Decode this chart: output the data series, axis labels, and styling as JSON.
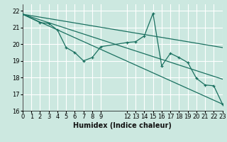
{
  "title": "",
  "xlabel": "Humidex (Indice chaleur)",
  "xlim": [
    0,
    23
  ],
  "ylim": [
    16,
    22.4
  ],
  "yticks": [
    16,
    17,
    18,
    19,
    20,
    21,
    22
  ],
  "xticks": [
    0,
    1,
    2,
    3,
    4,
    5,
    6,
    7,
    8,
    9,
    12,
    13,
    14,
    15,
    16,
    17,
    18,
    19,
    20,
    21,
    22,
    23
  ],
  "background_color": "#cce8e0",
  "grid_color": "#ffffff",
  "line_color": "#1a7060",
  "series_main": {
    "x": [
      0,
      2,
      3,
      4,
      5,
      6,
      7,
      8,
      9,
      12,
      13,
      14,
      15,
      16,
      17,
      18,
      19,
      20,
      21,
      22,
      23
    ],
    "y": [
      21.8,
      21.3,
      21.25,
      20.85,
      19.8,
      19.5,
      19.0,
      19.2,
      19.85,
      20.1,
      20.15,
      20.5,
      21.85,
      18.7,
      19.45,
      19.2,
      18.9,
      17.95,
      17.55,
      17.5,
      16.4
    ]
  },
  "series_lines": [
    {
      "x": [
        0,
        23
      ],
      "y": [
        21.8,
        19.8
      ]
    },
    {
      "x": [
        0,
        23
      ],
      "y": [
        21.8,
        16.4
      ]
    },
    {
      "x": [
        0,
        23
      ],
      "y": [
        21.8,
        17.9
      ]
    }
  ]
}
